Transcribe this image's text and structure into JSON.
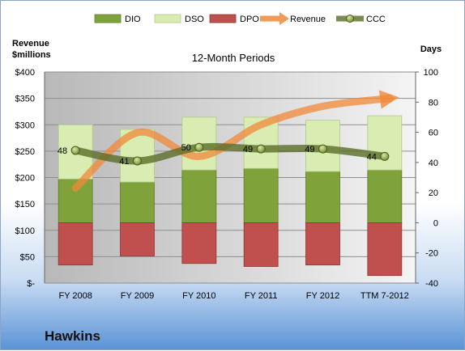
{
  "chart_data": {
    "type": "bar",
    "title": "12-Month Periods",
    "categories": [
      "FY 2008",
      "FY 2009",
      "FY 2010",
      "FY 2011",
      "FY 2012",
      "TTM 7-2012"
    ],
    "left_axis": {
      "label_line1": "Revenue",
      "label_line2": "$millions",
      "ylim": [
        0,
        400
      ],
      "ticks": [
        "$-",
        "$50",
        "$100",
        "$150",
        "$200",
        "$250",
        "$300",
        "$350",
        "$400"
      ]
    },
    "right_axis": {
      "label": "Days",
      "ylim": [
        -40,
        100
      ],
      "ticks": [
        "-40",
        "-20",
        "0",
        "20",
        "40",
        "60",
        "80",
        "100"
      ]
    },
    "series": [
      {
        "name": "DIO",
        "kind": "bar-stacked-positive",
        "axis": "right",
        "color": "#7fa23a",
        "values": [
          29,
          27,
          35,
          36,
          34,
          35
        ]
      },
      {
        "name": "DSO",
        "kind": "bar-stacked-positive",
        "axis": "right",
        "color": "#d9ecb1",
        "values": [
          36,
          35,
          35,
          34,
          34,
          36
        ]
      },
      {
        "name": "DPO",
        "kind": "bar-negative",
        "axis": "right",
        "color": "#c0504d",
        "values": [
          28,
          22,
          27,
          29,
          28,
          35
        ]
      },
      {
        "name": "Revenue",
        "kind": "line-arrow",
        "axis": "left",
        "color": "#f79646",
        "values": [
          180,
          285,
          240,
          300,
          335,
          350
        ]
      },
      {
        "name": "CCC",
        "kind": "line",
        "axis": "right",
        "color": "#5a6e28",
        "values": [
          48,
          41,
          50,
          49,
          49,
          44
        ]
      }
    ],
    "legend_position": "top",
    "grid": true
  },
  "company": "Hawkins"
}
